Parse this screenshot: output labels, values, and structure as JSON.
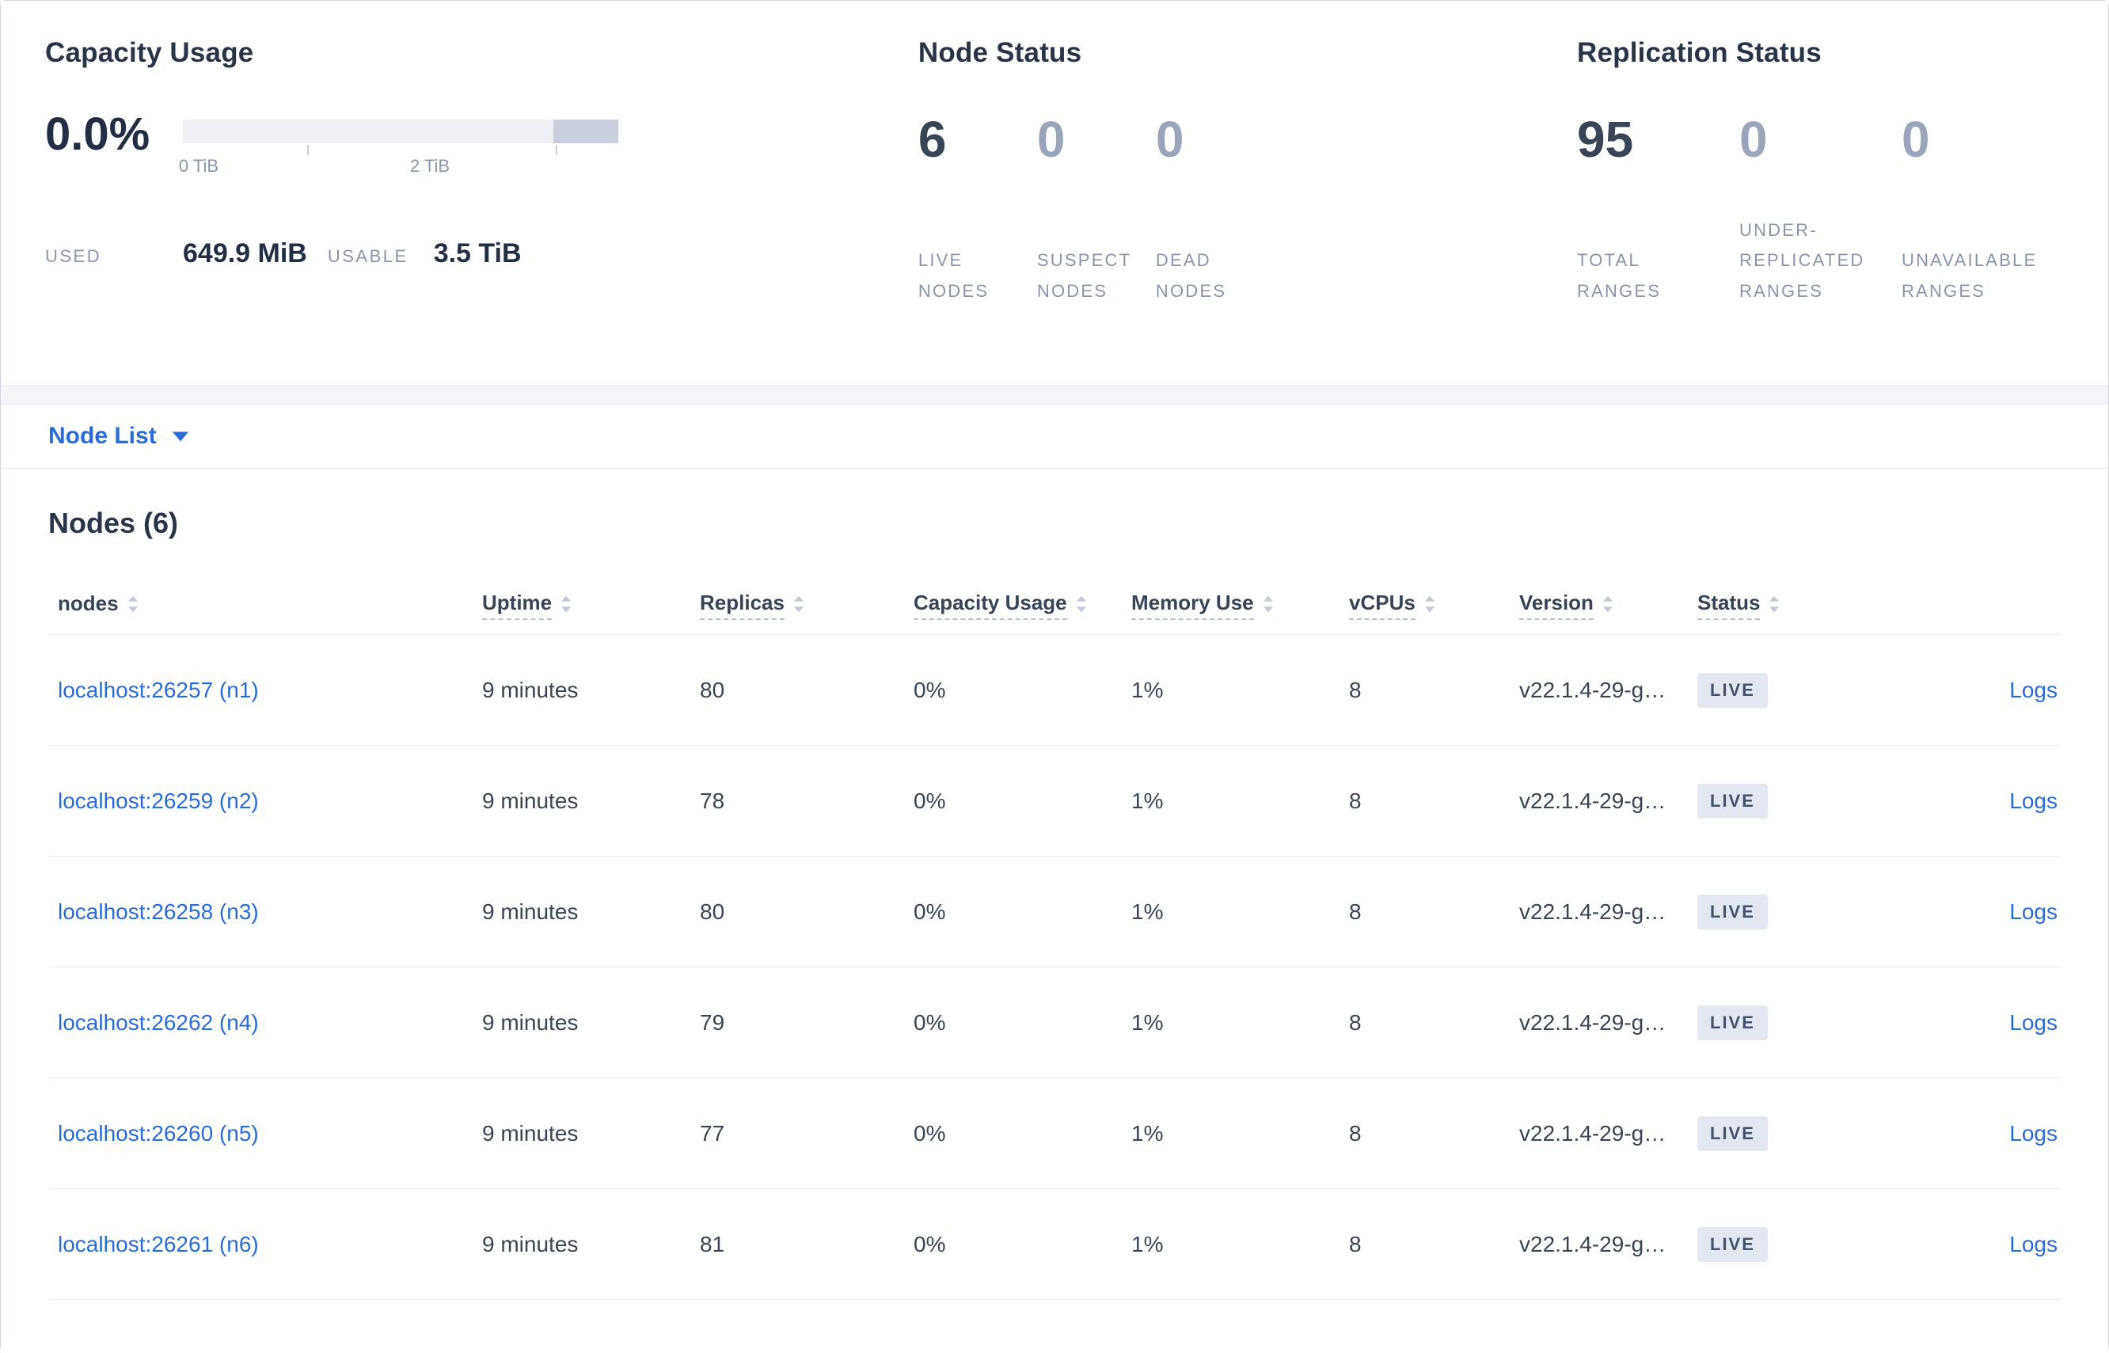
{
  "colors": {
    "link_blue": "#2a6bd8",
    "heading": "#2a3447",
    "muted_label": "#8b95aa",
    "muted_value": "#9aa5ba",
    "badge_bg": "#e3e8f0",
    "badge_text": "#44536b",
    "gauge_track": "#edeff4",
    "gauge_end": "#c8cedb"
  },
  "summary": {
    "capacity": {
      "title": "Capacity Usage",
      "percent": "0.0%",
      "ticks": [
        "0 TiB",
        "2 TiB"
      ],
      "used_label": "USED",
      "used_value": "649.9 MiB",
      "usable_label": "USABLE",
      "usable_value": "3.5 TiB"
    },
    "node_status": {
      "title": "Node Status",
      "stats": [
        {
          "value": "6",
          "label": "LIVE NODES"
        },
        {
          "value": "0",
          "label": "SUSPECT NODES"
        },
        {
          "value": "0",
          "label": "DEAD NODES"
        }
      ]
    },
    "replication_status": {
      "title": "Replication Status",
      "stats": [
        {
          "value": "95",
          "label": "TOTAL RANGES"
        },
        {
          "value": "0",
          "label": "UNDER-REPLICATED RANGES"
        },
        {
          "value": "0",
          "label": "UNAVAILABLE RANGES"
        }
      ]
    }
  },
  "node_list_dropdown": {
    "label": "Node List"
  },
  "table": {
    "title": "Nodes (6)",
    "columns": [
      "nodes",
      "Uptime",
      "Replicas",
      "Capacity Usage",
      "Memory Use",
      "vCPUs",
      "Version",
      "Status"
    ],
    "rows": [
      {
        "node": "localhost:26257 (n1)",
        "uptime": "9 minutes",
        "replicas": "80",
        "capacity": "0%",
        "memory": "1%",
        "vcpus": "8",
        "version": "v22.1.4-29-g…",
        "status": "LIVE",
        "logs": "Logs"
      },
      {
        "node": "localhost:26259 (n2)",
        "uptime": "9 minutes",
        "replicas": "78",
        "capacity": "0%",
        "memory": "1%",
        "vcpus": "8",
        "version": "v22.1.4-29-g…",
        "status": "LIVE",
        "logs": "Logs"
      },
      {
        "node": "localhost:26258 (n3)",
        "uptime": "9 minutes",
        "replicas": "80",
        "capacity": "0%",
        "memory": "1%",
        "vcpus": "8",
        "version": "v22.1.4-29-g…",
        "status": "LIVE",
        "logs": "Logs"
      },
      {
        "node": "localhost:26262 (n4)",
        "uptime": "9 minutes",
        "replicas": "79",
        "capacity": "0%",
        "memory": "1%",
        "vcpus": "8",
        "version": "v22.1.4-29-g…",
        "status": "LIVE",
        "logs": "Logs"
      },
      {
        "node": "localhost:26260 (n5)",
        "uptime": "9 minutes",
        "replicas": "77",
        "capacity": "0%",
        "memory": "1%",
        "vcpus": "8",
        "version": "v22.1.4-29-g…",
        "status": "LIVE",
        "logs": "Logs"
      },
      {
        "node": "localhost:26261 (n6)",
        "uptime": "9 minutes",
        "replicas": "81",
        "capacity": "0%",
        "memory": "1%",
        "vcpus": "8",
        "version": "v22.1.4-29-g…",
        "status": "LIVE",
        "logs": "Logs"
      }
    ]
  }
}
